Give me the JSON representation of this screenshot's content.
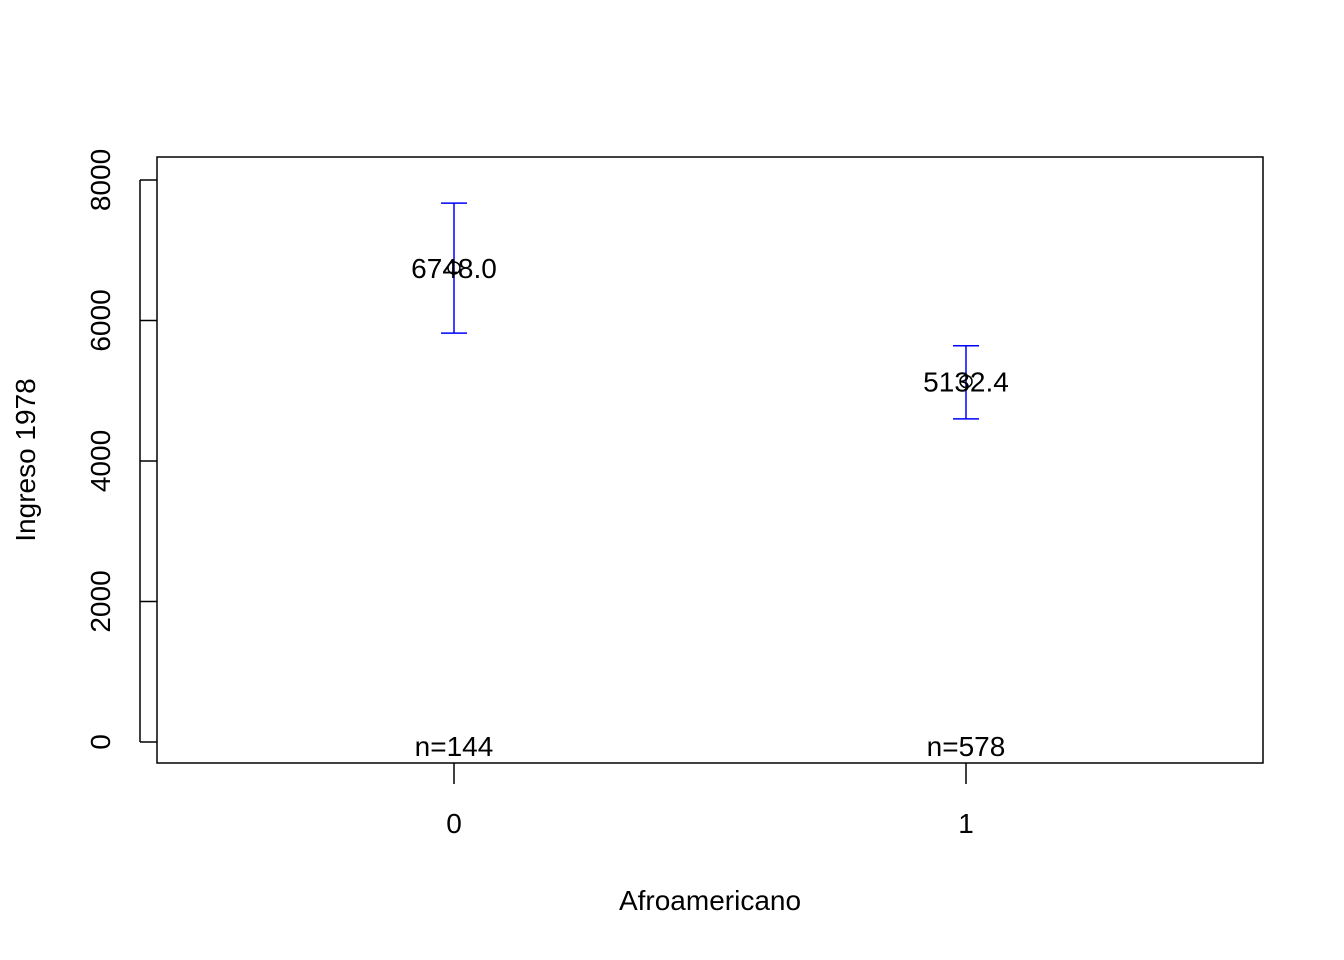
{
  "chart_data": {
    "type": "scatter",
    "subtype": "means-with-error-bars",
    "xlabel": "Afroamericano",
    "ylabel": "Ingreso 1978",
    "categories": [
      "0",
      "1"
    ],
    "series": [
      {
        "values": [
          6748.0,
          5132.4
        ],
        "value_labels": [
          "6748.0",
          "5132.4"
        ],
        "upper": [
          7670,
          5640
        ],
        "lower": [
          5820,
          4600
        ],
        "n_labels": [
          "n=144",
          "n=578"
        ]
      }
    ],
    "ylim": [
      -300,
      8300
    ],
    "yticks": [
      0,
      2000,
      4000,
      6000,
      8000
    ],
    "ytick_labels": [
      "0",
      "2000",
      "4000",
      "6000",
      "8000"
    ],
    "grid": false,
    "colors": {
      "error_bar": "#0000FF",
      "point": "#000000",
      "axes": "#000000"
    }
  }
}
